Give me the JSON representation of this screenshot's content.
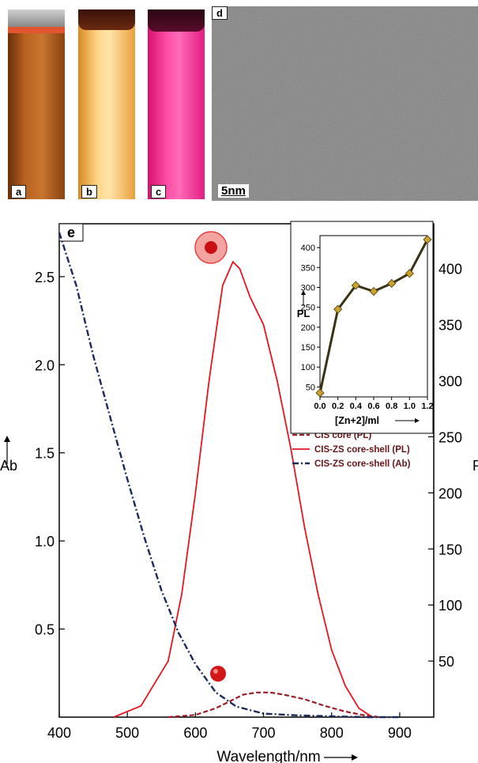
{
  "panels": {
    "a": {
      "label": "a",
      "color": "#b5621c"
    },
    "b": {
      "label": "b",
      "color": "#f6b84a"
    },
    "c": {
      "label": "c",
      "color": "#ef1e83"
    },
    "d": {
      "label": "d",
      "scalebar": "5nm"
    }
  },
  "main_chart": {
    "panel_label": "e",
    "xlabel": "Wavelength/nm",
    "ylabel_left": "Ab",
    "ylabel_right": "P",
    "legend": [
      {
        "label": "CIS  core (PL)",
        "color": "#9b1c24",
        "style": "dashed"
      },
      {
        "label": "CIS-ZS core-shell (PL)",
        "color": "#e8141e",
        "style": "solid"
      },
      {
        "label": "CIS-ZS core-shell (Ab)",
        "color": "#1c2a5c",
        "style": "dashdot"
      }
    ],
    "x_ticks": [
      "400",
      "500",
      "600",
      "700",
      "800",
      "900"
    ],
    "y_left_ticks": [
      "0.5",
      "1.0",
      "1.5",
      "2.0",
      "2.5"
    ],
    "y_right_ticks": [
      "50",
      "100",
      "150",
      "200",
      "250",
      "300",
      "350",
      "400"
    ]
  },
  "inset_chart": {
    "ylabel": "PL",
    "xlabel": "[Zn+2]/ml",
    "x_ticks": [
      "0.0",
      "0.2",
      "0.4",
      "0.6",
      "0.8",
      "1.0",
      "1.2"
    ],
    "y_ticks": [
      "50",
      "100",
      "150",
      "200",
      "250",
      "300",
      "350",
      "400"
    ]
  },
  "chart_data": [
    {
      "type": "line",
      "xlim": [
        400,
        950
      ],
      "ylim_left": [
        0,
        2.8
      ],
      "ylim_right": [
        0,
        440
      ],
      "series": [
        {
          "name": "CIS  core (PL)",
          "axis": "right",
          "x": [
            560,
            600,
            630,
            650,
            670,
            690,
            710,
            730,
            760,
            790,
            820,
            845,
            870
          ],
          "y": [
            0,
            2,
            8,
            14,
            20,
            22,
            22,
            20,
            16,
            10,
            5,
            2,
            0
          ]
        },
        {
          "name": "CIS-ZS core-shell (PL)",
          "axis": "right",
          "x": [
            480,
            520,
            560,
            580,
            600,
            620,
            640,
            655,
            665,
            680,
            700,
            720,
            740,
            760,
            780,
            800,
            820,
            840,
            860
          ],
          "y": [
            0,
            10,
            50,
            110,
            200,
            300,
            385,
            406,
            400,
            375,
            350,
            300,
            240,
            170,
            110,
            60,
            28,
            8,
            0
          ]
        },
        {
          "name": "CIS-ZS core-shell (Ab)",
          "axis": "left",
          "x": [
            400,
            425,
            450,
            475,
            500,
            525,
            550,
            575,
            600,
            630,
            660,
            700,
            750,
            800,
            850,
            900
          ],
          "y": [
            2.75,
            2.45,
            2.05,
            1.7,
            1.35,
            1.02,
            0.72,
            0.48,
            0.3,
            0.14,
            0.06,
            0.02,
            0.01,
            0.005,
            0,
            0
          ]
        }
      ]
    },
    {
      "type": "line",
      "xlim": [
        0,
        1.2
      ],
      "ylim": [
        25,
        430
      ],
      "series": [
        {
          "x": [
            0.0,
            0.2,
            0.4,
            0.6,
            0.8,
            1.0,
            1.2
          ],
          "y": [
            35,
            245,
            305,
            290,
            310,
            335,
            420
          ]
        }
      ]
    }
  ]
}
